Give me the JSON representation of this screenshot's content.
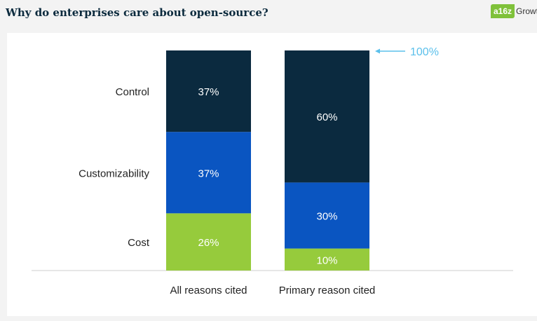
{
  "header": {
    "title": "Why do enterprises care about open-source?",
    "logo_badge": "a16z",
    "logo_text": "Growth"
  },
  "colors": {
    "control": "#0b2a3f",
    "customizability": "#0a55c1",
    "cost": "#96cb3c",
    "annotation": "#5bc0eb"
  },
  "chart_data": {
    "type": "bar",
    "stacked": true,
    "categories": [
      "All reasons cited",
      "Primary reason cited"
    ],
    "series": [
      {
        "name": "Cost",
        "values": [
          26,
          10
        ],
        "labels": [
          "26%",
          "10%"
        ]
      },
      {
        "name": "Customizability",
        "values": [
          37,
          30
        ],
        "labels": [
          "37%",
          "30%"
        ]
      },
      {
        "name": "Control",
        "values": [
          37,
          60
        ],
        "labels": [
          "37%",
          "60%"
        ]
      }
    ],
    "ylim": [
      0,
      100
    ],
    "annotation": "100%",
    "grid": false,
    "legend": "left"
  }
}
